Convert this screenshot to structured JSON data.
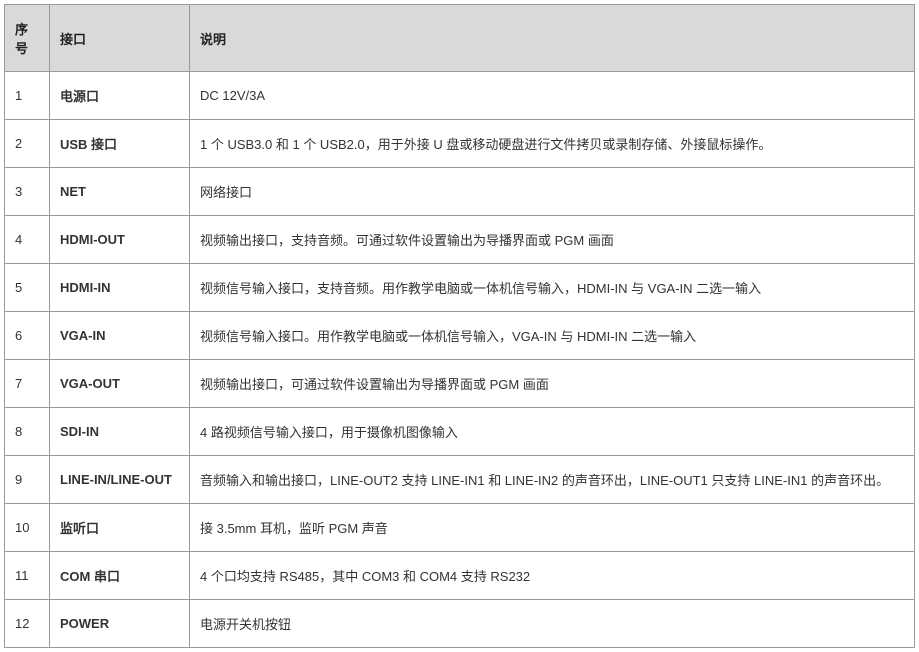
{
  "table": {
    "headers": {
      "seq": "序号",
      "port": "接口",
      "desc": "说明"
    },
    "rows": [
      {
        "seq": "1",
        "port": "电源口",
        "desc": "DC 12V/3A"
      },
      {
        "seq": "2",
        "port": "USB 接口",
        "desc": "1 个 USB3.0 和 1 个 USB2.0，用于外接 U 盘或移动硬盘进行文件拷贝或录制存储、外接鼠标操作。"
      },
      {
        "seq": "3",
        "port": "NET",
        "desc": "网络接口"
      },
      {
        "seq": "4",
        "port": "HDMI-OUT",
        "desc": "视频输出接口，支持音频。可通过软件设置输出为导播界面或 PGM 画面"
      },
      {
        "seq": "5",
        "port": "HDMI-IN",
        "desc": "视频信号输入接口，支持音频。用作教学电脑或一体机信号输入，HDMI-IN 与 VGA-IN 二选一输入"
      },
      {
        "seq": "6",
        "port": "VGA-IN",
        "desc": "视频信号输入接口。用作教学电脑或一体机信号输入，VGA-IN 与 HDMI-IN 二选一输入"
      },
      {
        "seq": "7",
        "port": "VGA-OUT",
        "desc": "视频输出接口，可通过软件设置输出为导播界面或 PGM 画面"
      },
      {
        "seq": "8",
        "port": "SDI-IN",
        "desc": "4 路视频信号输入接口，用于摄像机图像输入"
      },
      {
        "seq": "9",
        "port": "LINE-IN/LINE-OUT",
        "desc": "音频输入和输出接口，LINE-OUT2 支持 LINE-IN1 和 LINE-IN2 的声音环出，LINE-OUT1 只支持 LINE-IN1 的声音环出。"
      },
      {
        "seq": "10",
        "port": "监听口",
        "desc": "接 3.5mm 耳机，监听 PGM 声音"
      },
      {
        "seq": "11",
        "port": "COM 串口",
        "desc": "4 个口均支持 RS485，其中 COM3 和 COM4 支持 RS232"
      },
      {
        "seq": "12",
        "port": "POWER",
        "desc": "电源开关机按钮"
      }
    ]
  },
  "styling": {
    "header_bg": "#d9d9d9",
    "border_color": "#999999",
    "font_size": 13,
    "text_color": "#333333",
    "col_widths": {
      "seq": 45,
      "port": 140
    }
  }
}
